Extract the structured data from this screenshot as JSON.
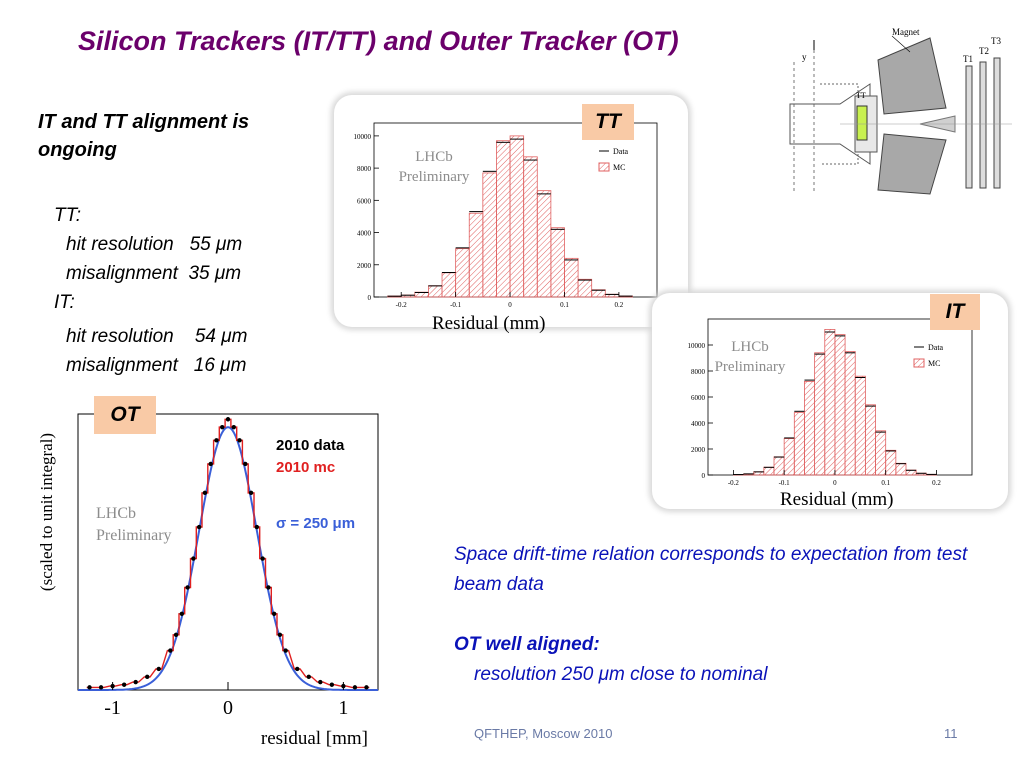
{
  "title": "Silicon Trackers (IT/TT) and Outer Tracker (OT)",
  "alignment_note": "IT and TT alignment is ongoing",
  "resolution": {
    "tt_label": "TT:",
    "tt_hit": "hit resolution   55 μm",
    "tt_mis": "misalignment  35 μm",
    "it_label": "IT:",
    "it_hit": "hit resolution    54 μm",
    "it_mis": "misalignment   16 μm"
  },
  "tags": {
    "tt": "TT",
    "it": "IT",
    "ot": "OT"
  },
  "watermark": {
    "line1": "LHCb",
    "line2": "Preliminary"
  },
  "detector": {
    "magnet": "Magnet",
    "tt": "TT",
    "t1": "T1",
    "t2": "T2",
    "t3": "T3",
    "y": "y"
  },
  "text_blocks": {
    "drift": "Space drift-time relation corresponds to expectation from test beam data",
    "ot_heading": "OT well aligned:",
    "ot_resolution": "resolution 250 μm close to nominal"
  },
  "footer": {
    "conference": "QFTHEP, Moscow 2010",
    "page": "11"
  },
  "colors": {
    "title": "#6b006b",
    "blue_text": "#0a12b8",
    "tag_bg": "#f9caa6",
    "mc_hatch": "#e06060",
    "ot_mc": "#e02020",
    "ot_fit": "#3a5fd8"
  },
  "chart_data": [
    {
      "type": "bar",
      "name_tag": "TT",
      "xlabel": "Residual (mm)",
      "x_ticks": [
        "-0.2",
        "-0.1",
        "0",
        "0.1",
        "0.2"
      ],
      "y_ticks": [
        "0",
        "2000",
        "4000",
        "6000",
        "8000",
        "10000"
      ],
      "xlim": [
        -0.25,
        0.27
      ],
      "ylim": [
        0,
        10800
      ],
      "legend": [
        "Data",
        "MC"
      ],
      "legend_position": "top-right",
      "bin_width": 0.025,
      "bin_centers": [
        -0.2125,
        -0.1875,
        -0.1625,
        -0.1375,
        -0.1125,
        -0.0875,
        -0.0625,
        -0.0375,
        -0.0125,
        0.0125,
        0.0375,
        0.0625,
        0.0875,
        0.1125,
        0.1375,
        0.1625,
        0.1875,
        0.2125
      ],
      "mc": [
        60,
        120,
        300,
        700,
        1500,
        3000,
        5200,
        7700,
        9700,
        10000,
        8700,
        6600,
        4300,
        2400,
        1100,
        450,
        170,
        60
      ],
      "data": [
        50,
        110,
        280,
        690,
        1520,
        3050,
        5300,
        7800,
        9600,
        9800,
        8500,
        6400,
        4200,
        2300,
        1050,
        420,
        160,
        55
      ]
    },
    {
      "type": "bar",
      "name_tag": "IT",
      "xlabel": "Residual (mm)",
      "x_ticks": [
        "-0.2",
        "-0.1",
        "0",
        "0.1",
        "0.2"
      ],
      "y_ticks": [
        "0",
        "2000",
        "4000",
        "6000",
        "8000",
        "10000"
      ],
      "xlim": [
        -0.25,
        0.27
      ],
      "ylim": [
        0,
        12000
      ],
      "legend": [
        "Data",
        "MC"
      ],
      "legend_position": "top-right",
      "bin_width": 0.02,
      "bin_centers": [
        -0.19,
        -0.17,
        -0.15,
        -0.13,
        -0.11,
        -0.09,
        -0.07,
        -0.05,
        -0.03,
        -0.01,
        0.01,
        0.03,
        0.05,
        0.07,
        0.09,
        0.11,
        0.13,
        0.15,
        0.17,
        0.19
      ],
      "mc": [
        40,
        90,
        250,
        600,
        1400,
        2800,
        4800,
        7200,
        9400,
        11200,
        10800,
        9500,
        7600,
        5400,
        3400,
        1900,
        900,
        380,
        140,
        50
      ],
      "data": [
        35,
        85,
        240,
        590,
        1380,
        2850,
        4900,
        7300,
        9300,
        11000,
        10700,
        9400,
        7500,
        5300,
        3300,
        1850,
        870,
        360,
        130,
        45
      ]
    },
    {
      "type": "line",
      "name_tag": "OT",
      "xlabel": "residual [mm]",
      "ylabel": "(scaled to unit integral)",
      "x_ticks": [
        "-1",
        "0",
        "1"
      ],
      "xlim": [
        -1.3,
        1.3
      ],
      "ylim": [
        0,
        1.05
      ],
      "legend": [
        "2010 data",
        "2010 mc"
      ],
      "legend_position": "top-right",
      "fit_label": "σ = 250  μm",
      "sigma": 0.25,
      "x": [
        -1.2,
        -1.1,
        -1.0,
        -0.9,
        -0.8,
        -0.7,
        -0.6,
        -0.5,
        -0.45,
        -0.4,
        -0.35,
        -0.3,
        -0.25,
        -0.2,
        -0.15,
        -0.1,
        -0.05,
        0,
        0.05,
        0.1,
        0.15,
        0.2,
        0.25,
        0.3,
        0.35,
        0.4,
        0.45,
        0.5,
        0.6,
        0.7,
        0.8,
        0.9,
        1.0,
        1.1,
        1.2
      ],
      "data": [
        0.01,
        0.01,
        0.015,
        0.02,
        0.03,
        0.05,
        0.08,
        0.15,
        0.21,
        0.29,
        0.39,
        0.5,
        0.62,
        0.75,
        0.86,
        0.95,
        1.0,
        1.03,
        1.0,
        0.95,
        0.86,
        0.75,
        0.62,
        0.5,
        0.39,
        0.29,
        0.21,
        0.15,
        0.08,
        0.05,
        0.03,
        0.02,
        0.015,
        0.01,
        0.01
      ]
    }
  ]
}
